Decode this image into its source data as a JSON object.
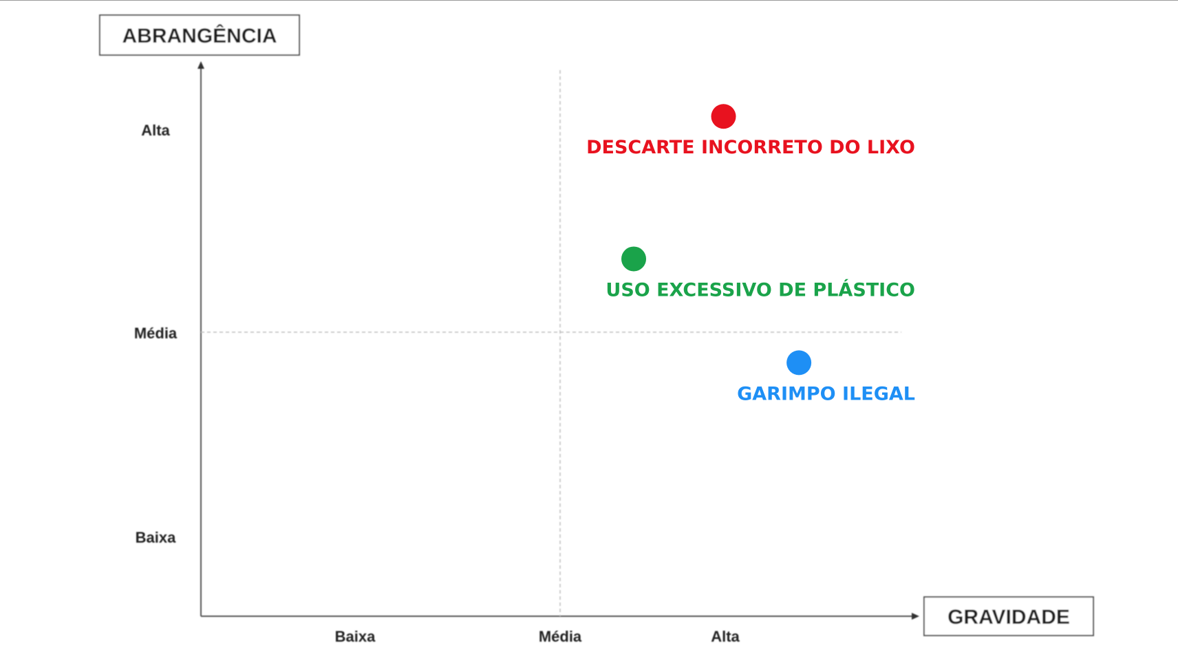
{
  "chart_data": {
    "type": "scatter",
    "title": "",
    "xlabel": "GRAVIDADE",
    "ylabel": "ABRANGÊNCIA",
    "x_ticks": [
      "Baixa",
      "Média",
      "Alta"
    ],
    "y_ticks": [
      "Baixa",
      "Média",
      "Alta"
    ],
    "xlim": [
      0,
      3.4
    ],
    "ylim": [
      0,
      3.4
    ],
    "reference_lines": {
      "x": 2,
      "y": 2
    },
    "grid": false,
    "points": [
      {
        "label": "DESCARTE INCORRETO DO LIXO",
        "x": 2.91,
        "y": 3.06,
        "color": "#e8121f"
      },
      {
        "label": "USO EXCESSIVO DE PLÁSTICO",
        "x": 2.41,
        "y": 2.36,
        "color": "#1aa34a"
      },
      {
        "label": "GARIMPO ILEGAL",
        "x": 3.33,
        "y": 1.85,
        "color": "#1e8ff5"
      }
    ]
  }
}
